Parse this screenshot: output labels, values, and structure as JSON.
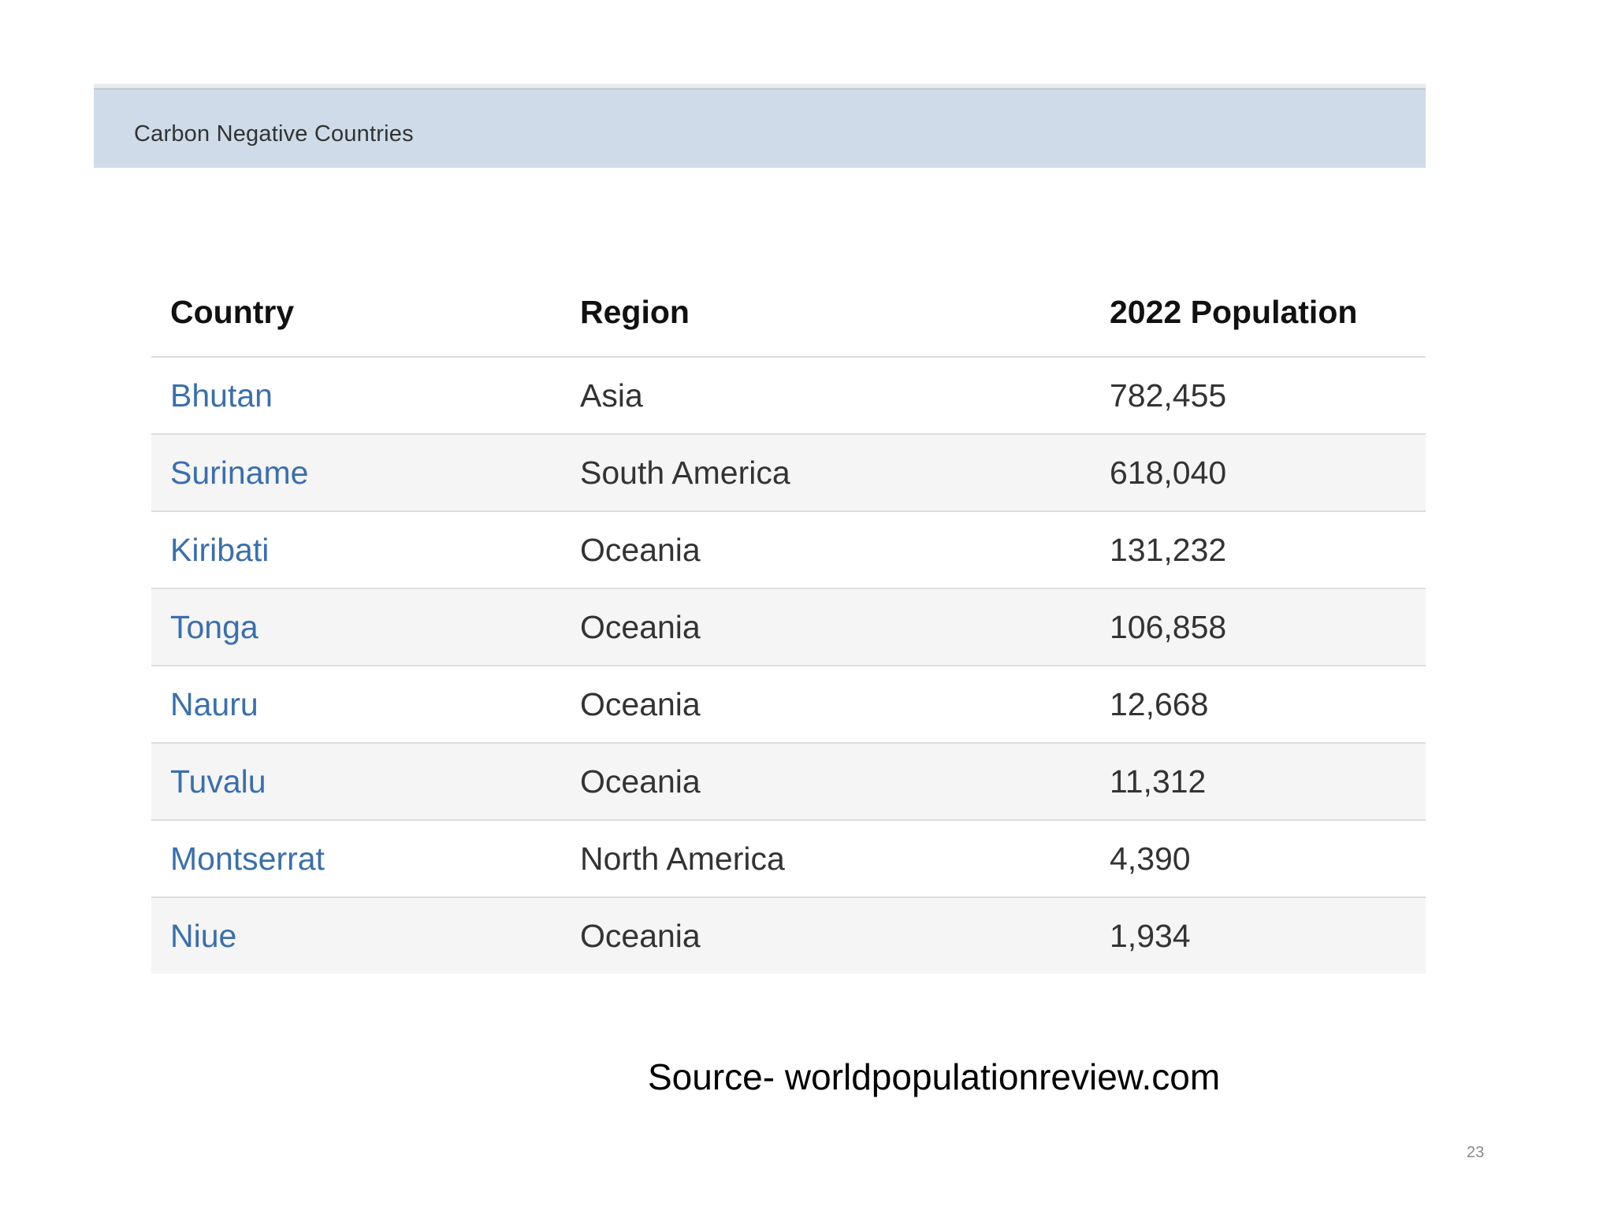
{
  "banner": {
    "title": "Carbon Negative Countries"
  },
  "table": {
    "headers": [
      "Country",
      "Region",
      "2022 Population"
    ],
    "rows": [
      {
        "country": "Bhutan",
        "region": "Asia",
        "population": "782,455"
      },
      {
        "country": "Suriname",
        "region": "South America",
        "population": "618,040"
      },
      {
        "country": "Kiribati",
        "region": "Oceania",
        "population": "131,232"
      },
      {
        "country": "Tonga",
        "region": "Oceania",
        "population": "106,858"
      },
      {
        "country": "Nauru",
        "region": "Oceania",
        "population": "12,668"
      },
      {
        "country": "Tuvalu",
        "region": "Oceania",
        "population": "11,312"
      },
      {
        "country": "Montserrat",
        "region": "North America",
        "population": "4,390"
      },
      {
        "country": "Niue",
        "region": "Oceania",
        "population": "1,934"
      }
    ]
  },
  "footer": {
    "source": "Source- worldpopulationreview.com",
    "page_number": "23"
  },
  "colors": {
    "banner_bg": "#cfdbe9",
    "link": "#3a6fad",
    "stripe": "#f5f5f5"
  }
}
